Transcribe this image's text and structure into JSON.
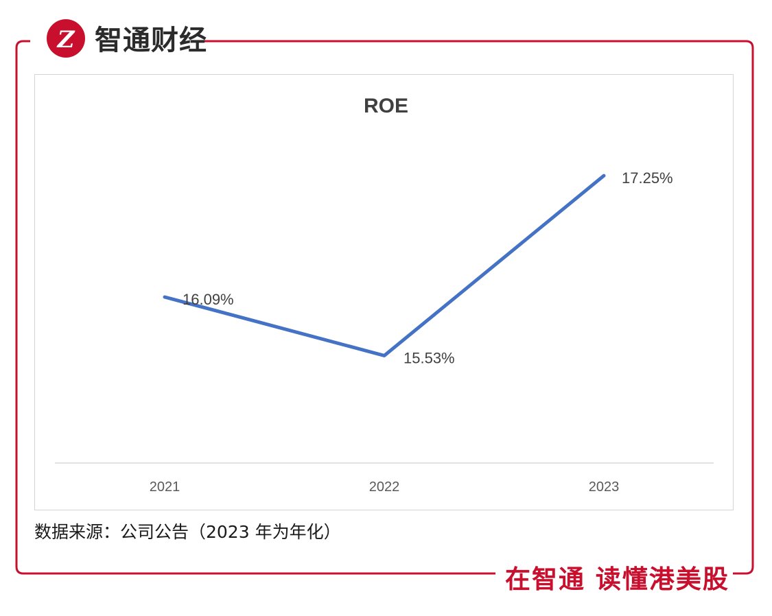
{
  "brand": {
    "logo_text": "智通财经",
    "slogan": "在智通 读懂港美股",
    "accent_color": "#c8102e",
    "logo_icon": "zhitong-logo-icon"
  },
  "chart_data": {
    "type": "line",
    "title": "ROE",
    "categories": [
      "2021",
      "2022",
      "2023"
    ],
    "series": [
      {
        "values": [
          16.09,
          15.53,
          17.25
        ],
        "color": "#4472c4"
      }
    ],
    "data_labels": [
      "16.09%",
      "15.53%",
      "17.25%"
    ],
    "xlabel": "",
    "ylabel": "",
    "grid": false,
    "legend": "none"
  },
  "footer": {
    "source": "数据来源：公司公告（2023 年为年化）"
  }
}
